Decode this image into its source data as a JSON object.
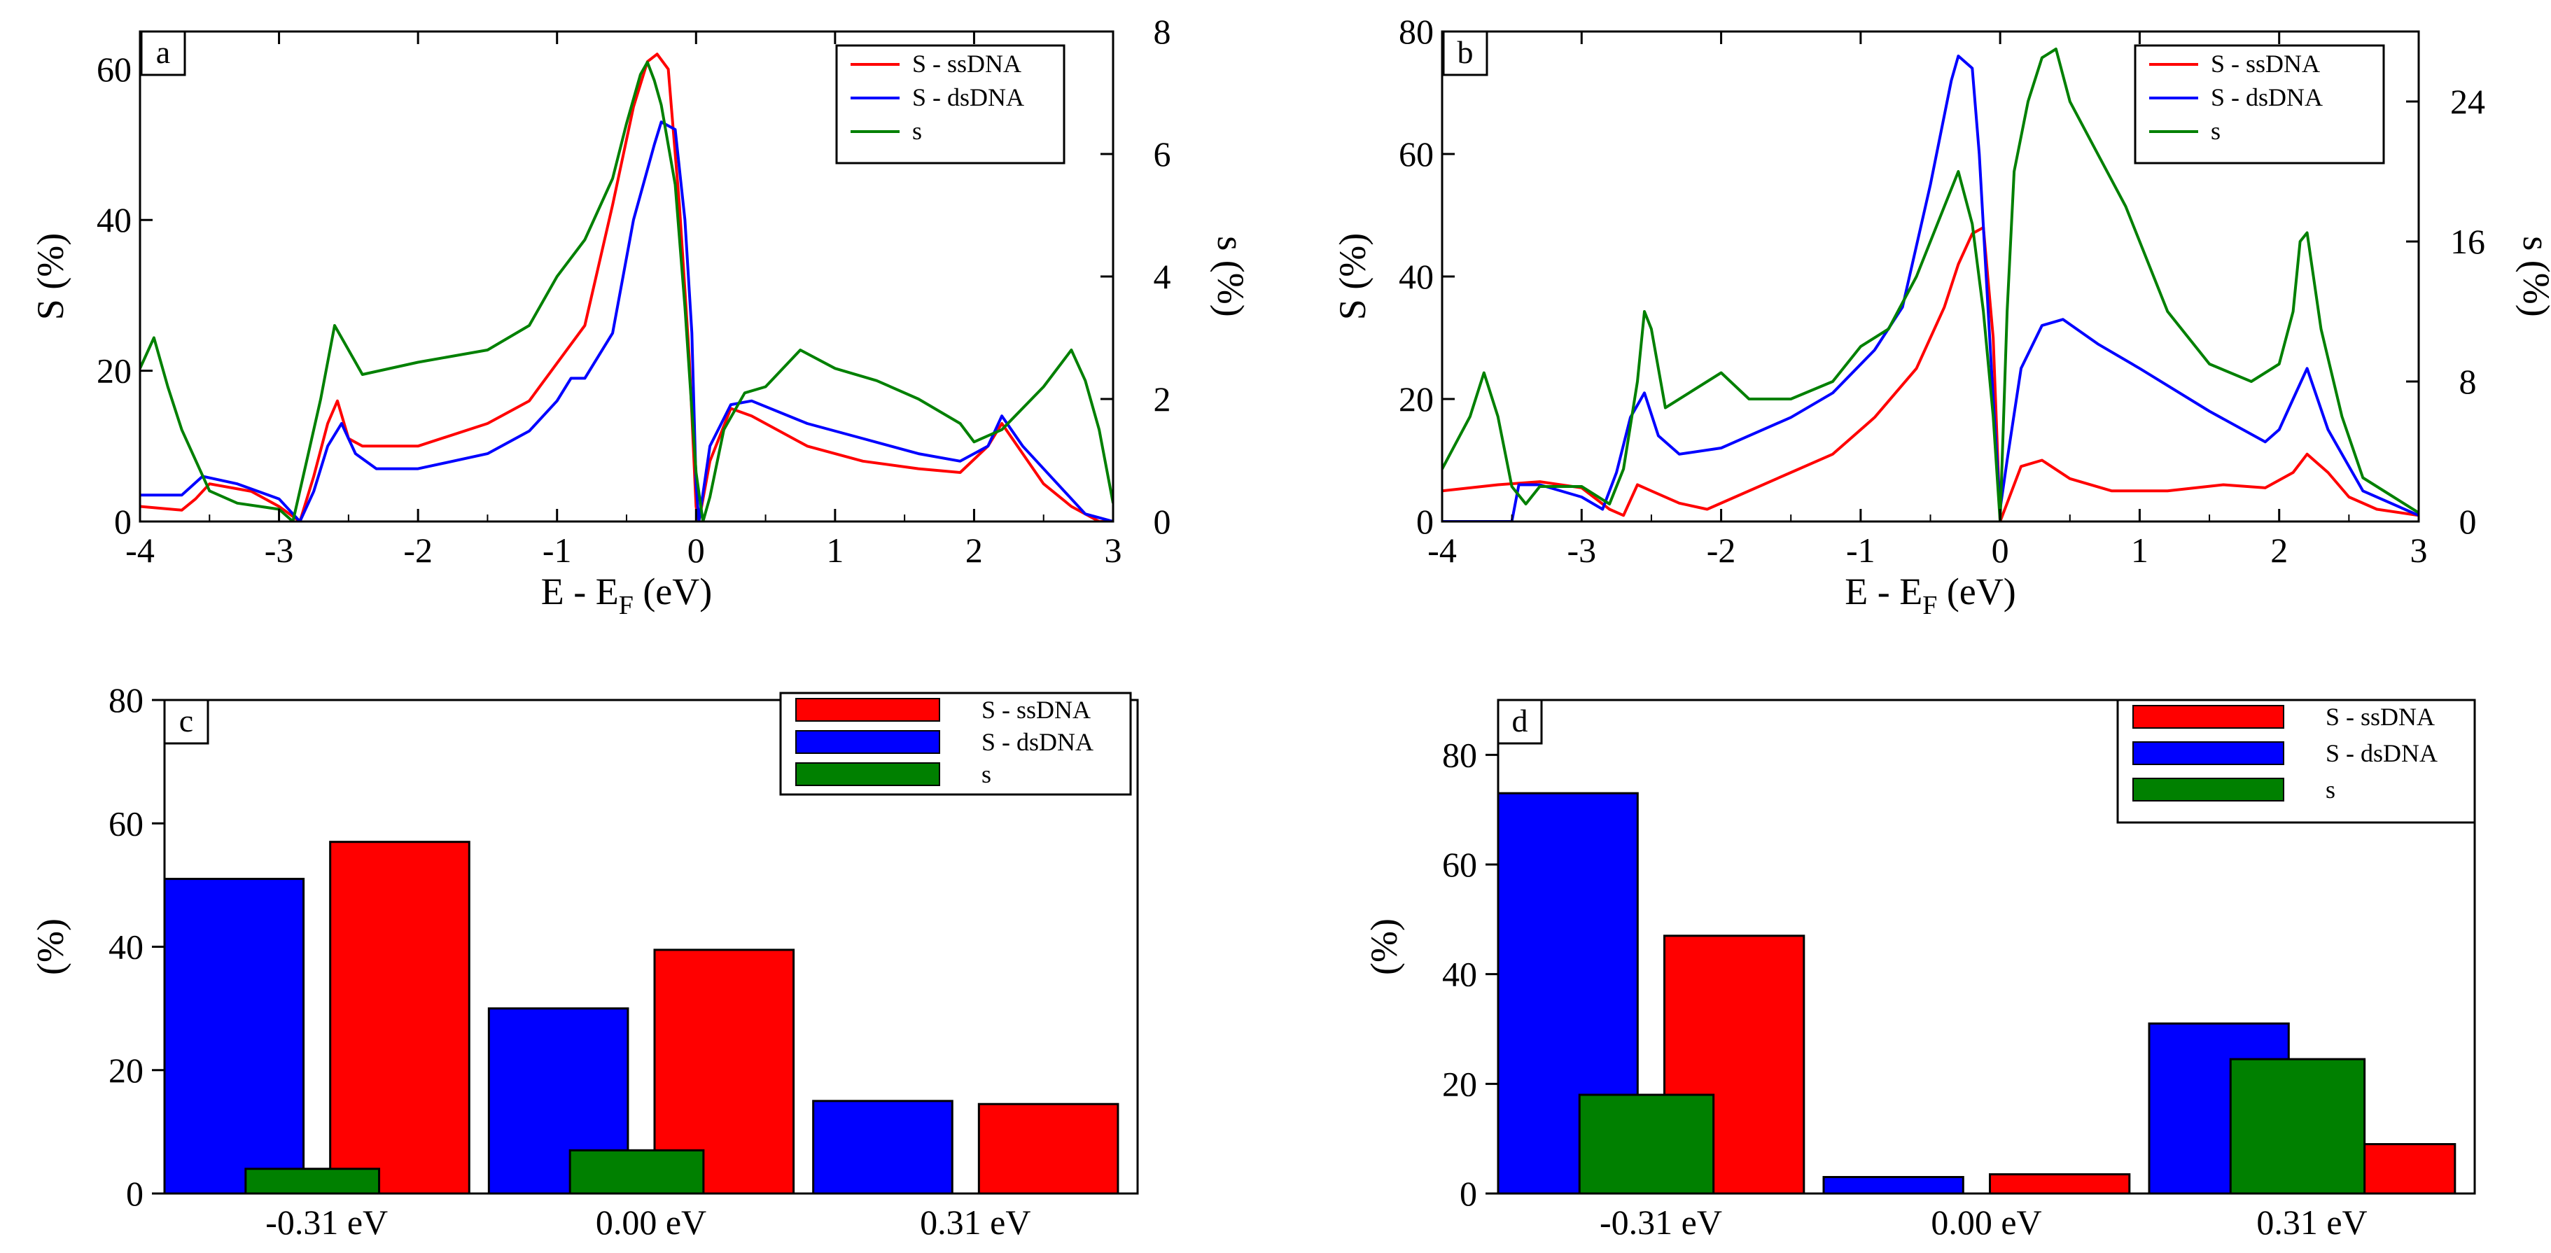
{
  "chart_data": [
    {
      "panel": "a",
      "type": "line",
      "xlabel": "E - E",
      "xlabel_sub": "F",
      "xlabel_unit": " (eV)",
      "ylabel": "S (%)",
      "y2label": "s (%)",
      "xlim": [
        -4,
        3
      ],
      "ylim": [
        0,
        65
      ],
      "y2lim": [
        0,
        8
      ],
      "xticks": [
        "-4",
        "-3",
        "-2",
        "-1",
        "0",
        "1",
        "2",
        "3"
      ],
      "yticks": [
        "0",
        "20",
        "40",
        "60"
      ],
      "y2ticks": [
        "0",
        "2",
        "4",
        "6",
        "8"
      ],
      "legend": [
        "S - ssDNA",
        "S - dsDNA",
        "s"
      ],
      "colors": [
        "#ff0000",
        "#0000ff",
        "#008000"
      ],
      "series": [
        {
          "name": "S - ssDNA",
          "axis": "left",
          "x": [
            -4,
            -3.7,
            -3.6,
            -3.5,
            -3.2,
            -3.0,
            -2.85,
            -2.75,
            -2.65,
            -2.58,
            -2.5,
            -2.4,
            -2.0,
            -1.5,
            -1.2,
            -1.0,
            -0.8,
            -0.6,
            -0.45,
            -0.35,
            -0.28,
            -0.2,
            -0.12,
            -0.05,
            0.0,
            0.02,
            0.1,
            0.25,
            0.4,
            0.8,
            1.2,
            1.6,
            1.9,
            2.1,
            2.2,
            2.35,
            2.5,
            2.7,
            2.9,
            3.0
          ],
          "y": [
            2,
            1.5,
            3,
            5,
            4,
            2,
            0,
            6,
            13,
            16,
            11,
            10,
            10,
            13,
            16,
            21,
            26,
            42,
            55,
            61,
            62,
            60,
            42,
            22,
            2,
            0,
            8,
            15,
            14,
            10,
            8,
            7,
            6.5,
            10,
            13,
            9,
            5,
            2,
            0,
            0
          ]
        },
        {
          "name": "S - dsDNA",
          "axis": "left",
          "x": [
            -4,
            -3.7,
            -3.55,
            -3.3,
            -3.0,
            -2.85,
            -2.75,
            -2.65,
            -2.55,
            -2.45,
            -2.3,
            -2.0,
            -1.5,
            -1.2,
            -1.0,
            -0.9,
            -0.8,
            -0.6,
            -0.45,
            -0.3,
            -0.25,
            -0.15,
            -0.08,
            -0.03,
            0.0,
            0.02,
            0.1,
            0.25,
            0.4,
            0.8,
            1.2,
            1.6,
            1.9,
            2.1,
            2.2,
            2.35,
            2.6,
            2.8,
            3.0
          ],
          "y": [
            3.5,
            3.5,
            6,
            5,
            3,
            0,
            4,
            10,
            13,
            9,
            7,
            7,
            9,
            12,
            16,
            19,
            19,
            25,
            40,
            50,
            53,
            52,
            40,
            25,
            5,
            0,
            10,
            15.5,
            16,
            13,
            11,
            9,
            8,
            10,
            14,
            10,
            5,
            1,
            0
          ]
        },
        {
          "name": "s",
          "axis": "right",
          "x": [
            -4,
            -3.9,
            -3.8,
            -3.7,
            -3.5,
            -3.3,
            -3.0,
            -2.9,
            -2.8,
            -2.7,
            -2.6,
            -2.5,
            -2.4,
            -2.0,
            -1.5,
            -1.2,
            -1.0,
            -0.8,
            -0.6,
            -0.5,
            -0.4,
            -0.35,
            -0.3,
            -0.25,
            -0.15,
            -0.08,
            0.0,
            0.05,
            0.1,
            0.2,
            0.35,
            0.5,
            0.75,
            1.0,
            1.3,
            1.6,
            1.9,
            2.0,
            2.2,
            2.5,
            2.7,
            2.8,
            2.9,
            3.0
          ],
          "y": [
            2.5,
            3.0,
            2.2,
            1.5,
            0.5,
            0.3,
            0.2,
            0.0,
            1.0,
            2.0,
            3.2,
            2.8,
            2.4,
            2.6,
            2.8,
            3.2,
            4.0,
            4.6,
            5.6,
            6.5,
            7.3,
            7.5,
            7.2,
            6.8,
            5.5,
            3.5,
            0.8,
            0.0,
            0.4,
            1.5,
            2.1,
            2.2,
            2.8,
            2.5,
            2.3,
            2.0,
            1.6,
            1.3,
            1.5,
            2.2,
            2.8,
            2.3,
            1.5,
            0.3
          ]
        }
      ]
    },
    {
      "panel": "b",
      "type": "line",
      "xlabel": "E - E",
      "xlabel_sub": "F",
      "xlabel_unit": " (eV)",
      "ylabel": "S (%)",
      "y2label": "s (%)",
      "xlim": [
        -4,
        3
      ],
      "ylim": [
        0,
        80
      ],
      "y2lim": [
        0,
        28
      ],
      "xticks": [
        "-4",
        "-3",
        "-2",
        "-1",
        "0",
        "1",
        "2",
        "3"
      ],
      "yticks": [
        "0",
        "20",
        "40",
        "60",
        "80"
      ],
      "y2ticks": [
        "0",
        "8",
        "16",
        "24"
      ],
      "legend": [
        "S - ssDNA",
        "S - dsDNA",
        "s"
      ],
      "colors": [
        "#ff0000",
        "#0000ff",
        "#008000"
      ],
      "series": [
        {
          "name": "S - ssDNA",
          "axis": "left",
          "x": [
            -4,
            -3.6,
            -3.3,
            -3.0,
            -2.8,
            -2.7,
            -2.6,
            -2.5,
            -2.3,
            -2.1,
            -1.9,
            -1.5,
            -1.2,
            -0.9,
            -0.6,
            -0.4,
            -0.3,
            -0.2,
            -0.12,
            -0.05,
            0.0,
            0.05,
            0.15,
            0.3,
            0.5,
            0.8,
            1.2,
            1.6,
            1.9,
            2.1,
            2.2,
            2.35,
            2.5,
            2.7,
            3.0
          ],
          "y": [
            5,
            6,
            6.5,
            5.5,
            2,
            1,
            6,
            5,
            3,
            2,
            4,
            8,
            11,
            17,
            25,
            35,
            42,
            47,
            48,
            30,
            0,
            3,
            9,
            10,
            7,
            5,
            5,
            6,
            5.5,
            8,
            11,
            8,
            4,
            2,
            1
          ]
        },
        {
          "name": "S - dsDNA",
          "axis": "left",
          "x": [
            -4,
            -3.7,
            -3.5,
            -3.45,
            -3.3,
            -3.0,
            -2.85,
            -2.75,
            -2.65,
            -2.55,
            -2.45,
            -2.3,
            -2.0,
            -1.5,
            -1.2,
            -0.9,
            -0.7,
            -0.5,
            -0.35,
            -0.3,
            -0.2,
            -0.15,
            -0.1,
            -0.05,
            0.0,
            0.05,
            0.15,
            0.3,
            0.45,
            0.7,
            1.0,
            1.5,
            1.9,
            2.0,
            2.1,
            2.2,
            2.35,
            2.6,
            3.0
          ],
          "y": [
            0,
            0,
            0,
            6,
            6,
            4,
            2,
            8,
            17,
            21,
            14,
            11,
            12,
            17,
            21,
            28,
            35,
            55,
            72,
            76,
            74,
            60,
            40,
            20,
            2,
            10,
            25,
            32,
            33,
            29,
            25,
            18,
            13,
            15,
            20,
            25,
            15,
            5,
            1
          ]
        },
        {
          "name": "s",
          "axis": "right",
          "x": [
            -4,
            -3.8,
            -3.7,
            -3.6,
            -3.5,
            -3.4,
            -3.3,
            -3.0,
            -2.8,
            -2.7,
            -2.6,
            -2.55,
            -2.5,
            -2.4,
            -2.2,
            -2.0,
            -1.8,
            -1.5,
            -1.2,
            -1.0,
            -0.8,
            -0.6,
            -0.4,
            -0.3,
            -0.2,
            -0.12,
            -0.05,
            0.0,
            0.05,
            0.1,
            0.2,
            0.3,
            0.4,
            0.5,
            0.7,
            0.9,
            1.2,
            1.5,
            1.8,
            2.0,
            2.1,
            2.15,
            2.2,
            2.3,
            2.45,
            2.6,
            2.8,
            3.0
          ],
          "y": [
            3,
            6,
            8.5,
            6,
            2,
            1,
            2,
            2,
            1,
            3,
            8,
            12,
            11,
            6.5,
            7.5,
            8.5,
            7,
            7,
            8,
            10,
            11,
            14,
            18,
            20,
            17,
            12,
            6,
            0,
            12,
            20,
            24,
            26.5,
            27,
            24,
            21,
            18,
            12,
            9,
            8,
            9,
            12,
            16,
            16.5,
            11,
            6,
            2.5,
            1.5,
            0.5
          ]
        }
      ]
    },
    {
      "panel": "c",
      "type": "bar",
      "ylabel": "(%)",
      "ylim": [
        0,
        80
      ],
      "yticks": [
        "0",
        "20",
        "40",
        "60",
        "80"
      ],
      "categories": [
        "-0.31 eV",
        "0.00 eV",
        "0.31 eV"
      ],
      "legend": [
        "S - ssDNA",
        "S - dsDNA",
        "s"
      ],
      "colors": [
        "#ff0000",
        "#0000ff",
        "#008000"
      ],
      "series": [
        {
          "name": "S - dsDNA",
          "values": [
            51,
            30,
            15
          ]
        },
        {
          "name": "S - ssDNA",
          "values": [
            57,
            39.5,
            14.5
          ]
        },
        {
          "name": "s",
          "values": [
            4,
            7,
            0
          ]
        }
      ]
    },
    {
      "panel": "d",
      "type": "bar",
      "ylabel": "(%)",
      "ylim": [
        0,
        90
      ],
      "yticks": [
        "0",
        "20",
        "40",
        "60",
        "80"
      ],
      "categories": [
        "-0.31 eV",
        "0.00 eV",
        "0.31 eV"
      ],
      "legend": [
        "S - ssDNA",
        "S - dsDNA",
        "s"
      ],
      "colors": [
        "#ff0000",
        "#0000ff",
        "#008000"
      ],
      "series": [
        {
          "name": "S - dsDNA",
          "values": [
            73,
            3,
            31
          ]
        },
        {
          "name": "S - ssDNA",
          "values": [
            47,
            3.5,
            9
          ]
        },
        {
          "name": "s",
          "values": [
            18,
            0,
            24.5
          ]
        }
      ]
    }
  ]
}
